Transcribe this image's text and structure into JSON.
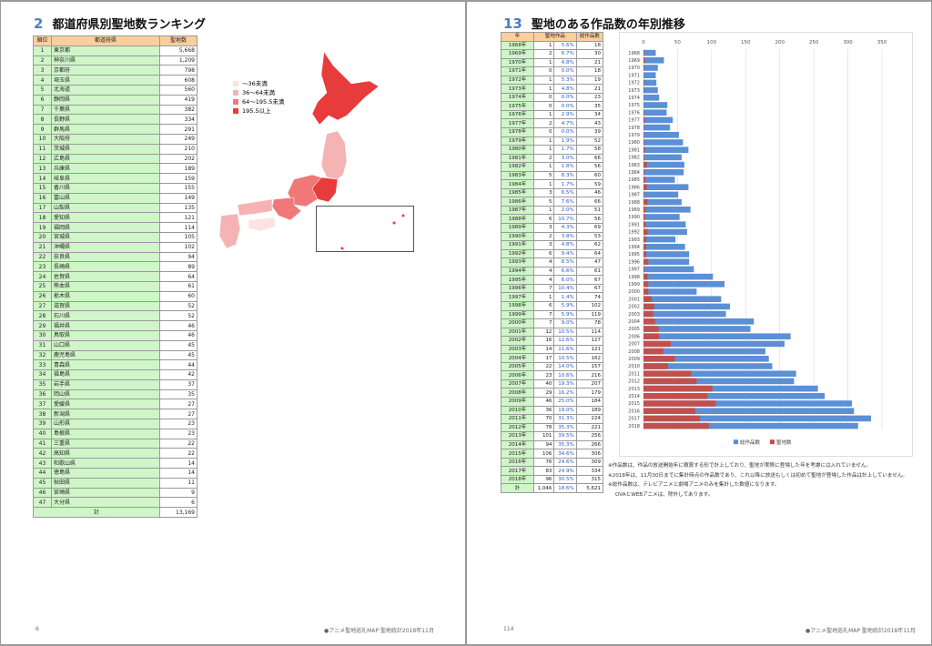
{
  "left_page": {
    "section_number": "2",
    "title": "都道府県別聖地数ランキング",
    "page_number": "6",
    "footer": "●アニメ聖地巡礼MAP 聖地統計2018年11月",
    "table": {
      "headers": [
        "順位",
        "都道府県",
        "聖地数"
      ],
      "rows": [
        [
          "1",
          "東京都",
          "5,668"
        ],
        [
          "2",
          "神奈川県",
          "1,209"
        ],
        [
          "3",
          "京都府",
          "798"
        ],
        [
          "4",
          "埼玉県",
          "608"
        ],
        [
          "5",
          "北海道",
          "560"
        ],
        [
          "6",
          "静岡県",
          "419"
        ],
        [
          "7",
          "千葉県",
          "382"
        ],
        [
          "8",
          "長野県",
          "334"
        ],
        [
          "9",
          "群馬県",
          "291"
        ],
        [
          "10",
          "大阪府",
          "249"
        ],
        [
          "11",
          "茨城県",
          "210"
        ],
        [
          "12",
          "広島県",
          "202"
        ],
        [
          "13",
          "兵庫県",
          "189"
        ],
        [
          "14",
          "岐阜県",
          "159"
        ],
        [
          "15",
          "香川県",
          "155"
        ],
        [
          "16",
          "富山県",
          "149"
        ],
        [
          "17",
          "山梨県",
          "135"
        ],
        [
          "18",
          "愛知県",
          "121"
        ],
        [
          "19",
          "福岡県",
          "114"
        ],
        [
          "20",
          "宮城県",
          "105"
        ],
        [
          "21",
          "沖縄県",
          "102"
        ],
        [
          "22",
          "奈良県",
          "94"
        ],
        [
          "23",
          "長崎県",
          "89"
        ],
        [
          "24",
          "佐賀県",
          "64"
        ],
        [
          "25",
          "熊本県",
          "61"
        ],
        [
          "26",
          "栃木県",
          "60"
        ],
        [
          "27",
          "滋賀県",
          "52"
        ],
        [
          "28",
          "石川県",
          "52"
        ],
        [
          "29",
          "福井県",
          "46"
        ],
        [
          "30",
          "鳥取県",
          "46"
        ],
        [
          "31",
          "山口県",
          "45"
        ],
        [
          "32",
          "鹿児島県",
          "45"
        ],
        [
          "33",
          "青森県",
          "44"
        ],
        [
          "34",
          "福島県",
          "42"
        ],
        [
          "35",
          "岩手県",
          "37"
        ],
        [
          "36",
          "岡山県",
          "35"
        ],
        [
          "37",
          "愛媛県",
          "27"
        ],
        [
          "38",
          "新潟県",
          "27"
        ],
        [
          "39",
          "山形県",
          "23"
        ],
        [
          "40",
          "島根県",
          "23"
        ],
        [
          "41",
          "三重県",
          "22"
        ],
        [
          "42",
          "高知県",
          "22"
        ],
        [
          "43",
          "和歌山県",
          "14"
        ],
        [
          "44",
          "徳島県",
          "14"
        ],
        [
          "45",
          "秋田県",
          "11"
        ],
        [
          "46",
          "宮崎県",
          "9"
        ],
        [
          "47",
          "大分県",
          "6"
        ]
      ],
      "total_label": "計",
      "total": "13,169"
    },
    "map_legend": [
      {
        "label": "～36未満",
        "color": "#fbe3e3"
      },
      {
        "label": "36～64未満",
        "color": "#f6b3b3"
      },
      {
        "label": "64～195.5未満",
        "color": "#f07878"
      },
      {
        "label": "195.5以上",
        "color": "#e83c3c"
      }
    ]
  },
  "right_page": {
    "section_number": "13",
    "title": "聖地のある作品数の年別推移",
    "page_number": "114",
    "footer": "●アニメ聖地巡礼MAP 聖地統計2018年11月",
    "table": {
      "headers": [
        "年",
        "聖地作品",
        "総作品数"
      ],
      "rows": [
        [
          "1968年",
          "1",
          "5.6%",
          "18"
        ],
        [
          "1969年",
          "2",
          "6.7%",
          "30"
        ],
        [
          "1970年",
          "1",
          "4.8%",
          "21"
        ],
        [
          "1971年",
          "0",
          "0.0%",
          "18"
        ],
        [
          "1972年",
          "1",
          "5.3%",
          "19"
        ],
        [
          "1973年",
          "1",
          "4.8%",
          "21"
        ],
        [
          "1974年",
          "0",
          "0.0%",
          "23"
        ],
        [
          "1975年",
          "0",
          "0.0%",
          "35"
        ],
        [
          "1976年",
          "1",
          "2.9%",
          "34"
        ],
        [
          "1977年",
          "2",
          "4.7%",
          "43"
        ],
        [
          "1978年",
          "0",
          "0.0%",
          "39"
        ],
        [
          "1979年",
          "1",
          "1.9%",
          "52"
        ],
        [
          "1980年",
          "1",
          "1.7%",
          "58"
        ],
        [
          "1981年",
          "2",
          "3.0%",
          "66"
        ],
        [
          "1982年",
          "1",
          "1.8%",
          "56"
        ],
        [
          "1983年",
          "5",
          "8.3%",
          "60"
        ],
        [
          "1984年",
          "1",
          "1.7%",
          "59"
        ],
        [
          "1985年",
          "3",
          "6.5%",
          "46"
        ],
        [
          "1986年",
          "5",
          "7.6%",
          "66"
        ],
        [
          "1987年",
          "1",
          "2.0%",
          "51"
        ],
        [
          "1988年",
          "6",
          "10.7%",
          "56"
        ],
        [
          "1989年",
          "3",
          "4.3%",
          "69"
        ],
        [
          "1990年",
          "2",
          "3.8%",
          "53"
        ],
        [
          "1991年",
          "3",
          "4.8%",
          "62"
        ],
        [
          "1992年",
          "6",
          "9.4%",
          "64"
        ],
        [
          "1993年",
          "4",
          "8.5%",
          "47"
        ],
        [
          "1994年",
          "4",
          "6.6%",
          "61"
        ],
        [
          "1995年",
          "4",
          "6.0%",
          "67"
        ],
        [
          "1996年",
          "7",
          "10.4%",
          "67"
        ],
        [
          "1997年",
          "1",
          "1.4%",
          "74"
        ],
        [
          "1998年",
          "6",
          "5.9%",
          "102"
        ],
        [
          "1999年",
          "7",
          "5.9%",
          "119"
        ],
        [
          "2000年",
          "7",
          "9.0%",
          "78"
        ],
        [
          "2001年",
          "12",
          "10.5%",
          "114"
        ],
        [
          "2002年",
          "16",
          "12.6%",
          "127"
        ],
        [
          "2003年",
          "14",
          "11.6%",
          "121"
        ],
        [
          "2004年",
          "17",
          "10.5%",
          "162"
        ],
        [
          "2005年",
          "22",
          "14.0%",
          "157"
        ],
        [
          "2006年",
          "23",
          "10.6%",
          "216"
        ],
        [
          "2007年",
          "40",
          "19.3%",
          "207"
        ],
        [
          "2008年",
          "29",
          "16.2%",
          "179"
        ],
        [
          "2009年",
          "46",
          "25.0%",
          "184"
        ],
        [
          "2010年",
          "36",
          "19.0%",
          "189"
        ],
        [
          "2011年",
          "70",
          "31.3%",
          "224"
        ],
        [
          "2012年",
          "78",
          "35.3%",
          "221"
        ],
        [
          "2013年",
          "101",
          "39.5%",
          "256"
        ],
        [
          "2014年",
          "94",
          "35.3%",
          "266"
        ],
        [
          "2015年",
          "106",
          "34.6%",
          "306"
        ],
        [
          "2016年",
          "76",
          "24.6%",
          "309"
        ],
        [
          "2017年",
          "83",
          "24.9%",
          "334"
        ],
        [
          "2018年",
          "96",
          "30.5%",
          "315"
        ]
      ],
      "total": [
        "計",
        "1,046",
        "18.6%",
        "5,621"
      ]
    },
    "notes": [
      "※作品数は、作品の放送開始年に積算する形で計上しており、聖地が実際に登場した年を考慮には入れていません。",
      "※2018年は、11月30日までに集計時点の作品数であり、これ以降に放送もしくは初めて聖地が登場した作品は計上していません。",
      "※総作品数は、テレビアニメと劇場アニメのみを集計した数値になります。",
      "OVAとWEBアニメは、除外してあります。"
    ]
  },
  "chart_data": {
    "type": "bar",
    "orientation": "horizontal",
    "xlim": [
      0,
      350
    ],
    "xticks": [
      "0",
      "50",
      "100",
      "150",
      "200",
      "250",
      "300",
      "350"
    ],
    "grid": true,
    "legend_position": "bottom",
    "categories": [
      "1968",
      "1969",
      "1970",
      "1971",
      "1972",
      "1973",
      "1974",
      "1975",
      "1976",
      "1977",
      "1978",
      "1979",
      "1980",
      "1981",
      "1982",
      "1983",
      "1984",
      "1985",
      "1986",
      "1987",
      "1988",
      "1989",
      "1990",
      "1991",
      "1992",
      "1993",
      "1994",
      "1995",
      "1996",
      "1997",
      "1998",
      "1999",
      "2000",
      "2001",
      "2002",
      "2003",
      "2004",
      "2005",
      "2006",
      "2007",
      "2008",
      "2009",
      "2010",
      "2011",
      "2012",
      "2013",
      "2014",
      "2015",
      "2016",
      "2017",
      "2018"
    ],
    "series": [
      {
        "name": "総作品数",
        "color": "#5b8fd6",
        "values": [
          18,
          30,
          21,
          18,
          19,
          21,
          23,
          35,
          34,
          43,
          39,
          52,
          58,
          66,
          56,
          60,
          59,
          46,
          66,
          51,
          56,
          69,
          53,
          62,
          64,
          47,
          61,
          67,
          67,
          74,
          102,
          119,
          78,
          114,
          127,
          121,
          162,
          157,
          216,
          207,
          179,
          184,
          189,
          224,
          221,
          256,
          266,
          306,
          309,
          334,
          315
        ]
      },
      {
        "name": "聖地数",
        "color": "#c0504d",
        "values": [
          1,
          2,
          1,
          0,
          1,
          1,
          0,
          0,
          1,
          2,
          0,
          1,
          1,
          2,
          1,
          5,
          1,
          3,
          5,
          1,
          6,
          3,
          2,
          3,
          6,
          4,
          4,
          4,
          7,
          1,
          6,
          7,
          7,
          12,
          16,
          14,
          17,
          22,
          23,
          40,
          29,
          46,
          36,
          70,
          78,
          101,
          94,
          106,
          76,
          83,
          96
        ]
      }
    ]
  }
}
